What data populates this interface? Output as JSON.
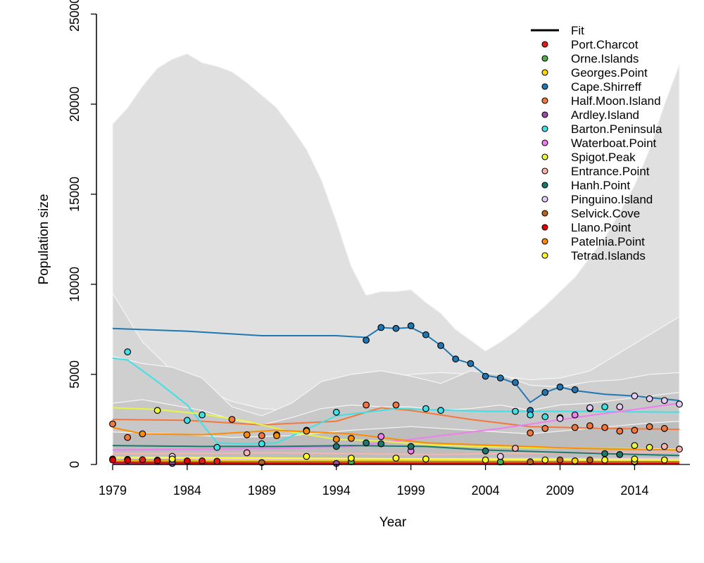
{
  "chart_data": {
    "type": "line",
    "xlabel": "Year",
    "ylabel": "Population size",
    "xlim": [
      1979,
      2017
    ],
    "ylim": [
      0,
      25000
    ],
    "x_ticks": [
      1979,
      1984,
      1989,
      1994,
      1999,
      2004,
      2009,
      2014
    ],
    "y_ticks": [
      0,
      5000,
      10000,
      15000,
      20000,
      25000
    ],
    "y_tick_labels": [
      "0",
      "5000",
      "10000",
      "15000",
      "20000",
      "25000"
    ],
    "grid": false,
    "legend_position": "top-right",
    "legend_fit_label": "Fit",
    "confidence_bands": [
      {
        "color": "#e0e0e0",
        "x": [
          1979,
          1980,
          1981,
          1982,
          1983,
          1984,
          1985,
          1986,
          1987,
          1988,
          1989,
          1990,
          1991,
          1992,
          1993,
          1994,
          1995,
          1996,
          1997,
          1998,
          1999,
          2000,
          2001,
          2002,
          2003,
          2004,
          2005,
          2006,
          2007,
          2008,
          2009,
          2010,
          2011,
          2012,
          2013,
          2014,
          2015,
          2016,
          2017
        ],
        "lower": [
          0,
          0,
          0,
          0,
          0,
          0,
          0,
          0,
          0,
          0,
          0,
          0,
          0,
          0,
          0,
          0,
          0,
          0,
          0,
          0,
          0,
          0,
          0,
          0,
          0,
          0,
          0,
          0,
          0,
          0,
          0,
          0,
          0,
          0,
          0,
          0,
          0,
          0,
          0
        ],
        "upper": [
          18900,
          19800,
          21000,
          22000,
          22500,
          22800,
          22300,
          22100,
          21800,
          21200,
          20500,
          19800,
          18700,
          17500,
          15800,
          13500,
          11000,
          9400,
          9600,
          9600,
          9700,
          9000,
          8400,
          7500,
          6900,
          6300,
          6800,
          7400,
          8100,
          8800,
          9600,
          10400,
          11500,
          12600,
          14000,
          15500,
          17500,
          20000,
          22200
        ]
      },
      {
        "color": "#d6d6d6",
        "x": [
          1979,
          1981,
          1983,
          1985,
          1987,
          1989,
          1991,
          1993,
          1995,
          1997,
          1999,
          2001,
          2003,
          2005,
          2007,
          2009,
          2011,
          2013,
          2015,
          2017
        ],
        "lower": [
          0,
          0,
          0,
          0,
          0,
          0,
          0,
          0,
          0,
          0,
          0,
          0,
          0,
          0,
          0,
          0,
          0,
          0,
          0,
          0
        ],
        "upper": [
          9500,
          6800,
          5200,
          4200,
          3500,
          3100,
          3000,
          3300,
          3800,
          4700,
          5000,
          5100,
          5000,
          4900,
          4700,
          4800,
          5200,
          6200,
          7200,
          8200
        ]
      },
      {
        "color": "#cfcfcf",
        "x": [
          1979,
          1981,
          1983,
          1985,
          1987,
          1989,
          1991,
          1993,
          1995,
          1997,
          1999,
          2001,
          2003,
          2005,
          2007,
          2009,
          2011,
          2013,
          2015,
          2017
        ],
        "lower": [
          0,
          0,
          0,
          0,
          0,
          0,
          0,
          0,
          0,
          0,
          0,
          0,
          0,
          0,
          0,
          0,
          0,
          0,
          0,
          0
        ],
        "upper": [
          6000,
          5600,
          5400,
          4800,
          3200,
          2700,
          3400,
          4600,
          5000,
          5200,
          4900,
          4500,
          5200,
          5000,
          4400,
          4300,
          4600,
          4700,
          5000,
          5100
        ]
      },
      {
        "color": "#c8c8c8",
        "x": [
          1979,
          1981,
          1983,
          1985,
          1987,
          1989,
          1991,
          1993,
          1995,
          1997,
          1999,
          2001,
          2003,
          2005,
          2007,
          2009,
          2011,
          2013,
          2015,
          2017
        ],
        "lower": [
          0,
          0,
          0,
          0,
          0,
          0,
          0,
          0,
          0,
          0,
          0,
          0,
          0,
          0,
          0,
          0,
          0,
          0,
          0,
          0
        ],
        "upper": [
          3400,
          3600,
          3300,
          3000,
          2500,
          2200,
          2600,
          3100,
          3300,
          3200,
          3200,
          3000,
          3100,
          3300,
          3000,
          3300,
          3400,
          3600,
          3800,
          4000
        ]
      },
      {
        "color": "#bdbdbd",
        "x": [
          1979,
          1983,
          1987,
          1991,
          1995,
          1999,
          2003,
          2007,
          2011,
          2015,
          2017
        ],
        "lower": [
          0,
          0,
          0,
          0,
          0,
          0,
          0,
          0,
          0,
          0,
          0
        ],
        "upper": [
          1800,
          1700,
          1500,
          1600,
          1900,
          2100,
          1900,
          1700,
          2000,
          2300,
          2400
        ]
      }
    ],
    "band_outline_color": "#f5f5f5",
    "series": [
      {
        "name": "Port.Charcot",
        "color": "#e41a1c",
        "fit_x": [
          1979,
          1985,
          1990,
          1995,
          2000,
          2005,
          2010,
          2017
        ],
        "fit_y": [
          280,
          200,
          140,
          110,
          100,
          95,
          90,
          90
        ],
        "points": [
          [
            1979,
            300
          ],
          [
            1980,
            280
          ],
          [
            1981,
            260
          ],
          [
            1982,
            240
          ],
          [
            1983,
            230
          ],
          [
            1985,
            200
          ],
          [
            1986,
            180
          ]
        ]
      },
      {
        "name": "Orne.Islands",
        "color": "#4daf4a",
        "fit_x": [
          1979,
          1990,
          2000,
          2010,
          2017
        ],
        "fit_y": [
          150,
          140,
          135,
          130,
          130
        ],
        "points": [
          [
            1995,
            150
          ],
          [
            2005,
            140
          ],
          [
            2014,
            130
          ]
        ]
      },
      {
        "name": "Georges.Point",
        "color": "#ffd700",
        "fit_x": [
          1979,
          1990,
          2000,
          2010,
          2017
        ],
        "fit_y": [
          200,
          190,
          180,
          170,
          165
        ],
        "points": [
          [
            2010,
            200
          ],
          [
            2014,
            180
          ]
        ]
      },
      {
        "name": "Cape.Shirreff",
        "color": "#1f78b4",
        "fit_x": [
          1979,
          1984,
          1989,
          1994,
          1996,
          1997,
          1998,
          1999,
          2000,
          2001,
          2002,
          2003,
          2004,
          2005,
          2006,
          2007,
          2008,
          2009,
          2010,
          2012,
          2014,
          2017
        ],
        "fit_y": [
          7550,
          7400,
          7150,
          7150,
          7050,
          7600,
          7550,
          7600,
          7200,
          6600,
          5850,
          5600,
          4950,
          4800,
          4500,
          3450,
          4000,
          4300,
          4100,
          3900,
          3800,
          3550
        ],
        "points": [
          [
            1996,
            6900
          ],
          [
            1997,
            7600
          ],
          [
            1998,
            7550
          ],
          [
            1999,
            7700
          ],
          [
            2000,
            7200
          ],
          [
            2001,
            6600
          ],
          [
            2002,
            5850
          ],
          [
            2003,
            5600
          ],
          [
            2004,
            4900
          ],
          [
            2005,
            4800
          ],
          [
            2006,
            4550
          ],
          [
            2007,
            3000
          ],
          [
            2008,
            4000
          ],
          [
            2009,
            4300
          ],
          [
            2010,
            4150
          ]
        ]
      },
      {
        "name": "Half.Moon.Island",
        "color": "#f4783c",
        "fit_x": [
          1979,
          1984,
          1989,
          1994,
          1997,
          1999,
          2003,
          2007,
          2012,
          2017
        ],
        "fit_y": [
          2500,
          2450,
          2200,
          2400,
          3150,
          3000,
          2500,
          2100,
          2000,
          1950
        ],
        "points": [
          [
            1979,
            2250
          ],
          [
            1980,
            1500
          ],
          [
            1987,
            2500
          ],
          [
            1989,
            1600
          ],
          [
            1990,
            1650
          ],
          [
            1992,
            1900
          ],
          [
            1994,
            1400
          ],
          [
            1996,
            3300
          ],
          [
            1998,
            3300
          ],
          [
            2007,
            1750
          ],
          [
            2008,
            2000
          ],
          [
            2010,
            2050
          ],
          [
            2011,
            2150
          ],
          [
            2012,
            2050
          ],
          [
            2013,
            1850
          ],
          [
            2014,
            1900
          ],
          [
            2015,
            2100
          ],
          [
            2016,
            2000
          ]
        ]
      },
      {
        "name": "Ardley.Island",
        "color": "#984ea3",
        "fit_x": [
          1979,
          1990,
          2000,
          2010,
          2017
        ],
        "fit_y": [
          60,
          55,
          50,
          50,
          50
        ],
        "points": [
          [
            1983,
            60
          ],
          [
            1994,
            55
          ]
        ]
      },
      {
        "name": "Barton.Peninsula",
        "color": "#3fe0e6",
        "fit_x": [
          1979,
          1980,
          1982,
          1984,
          1986,
          1988,
          1990,
          1994,
          1998,
          2004,
          2010,
          2017
        ],
        "fit_y": [
          5900,
          5800,
          4600,
          3300,
          1200,
          1150,
          1200,
          2700,
          3100,
          2950,
          2950,
          2900
        ],
        "points": [
          [
            1980,
            6250
          ],
          [
            1984,
            2450
          ],
          [
            1985,
            2750
          ],
          [
            1986,
            950
          ],
          [
            1989,
            1150
          ],
          [
            1994,
            2900
          ],
          [
            2000,
            3100
          ],
          [
            2001,
            3000
          ],
          [
            2006,
            2950
          ],
          [
            2007,
            2750
          ],
          [
            2008,
            2650
          ],
          [
            2011,
            3100
          ],
          [
            2012,
            3200
          ]
        ]
      },
      {
        "name": "Waterboat.Point",
        "color": "#f07ef0",
        "fit_x": [
          1979,
          1985,
          1990,
          1995,
          2000,
          2005,
          2010,
          2017
        ],
        "fit_y": [
          800,
          850,
          900,
          1000,
          1500,
          2000,
          2600,
          3400
        ],
        "points": [
          [
            1997,
            1550
          ],
          [
            1999,
            750
          ],
          [
            2009,
            2600
          ],
          [
            2010,
            2750
          ]
        ]
      },
      {
        "name": "Spigot.Peak",
        "color": "#e8f542",
        "fit_x": [
          1979,
          1982,
          1985,
          1988,
          1991,
          1994,
          1997,
          2000,
          2003,
          2006,
          2010,
          2017
        ],
        "fit_y": [
          3150,
          3050,
          2800,
          2400,
          1800,
          1400,
          1300,
          1100,
          1000,
          950,
          900,
          850
        ],
        "points": [
          [
            1982,
            3000
          ],
          [
            2014,
            1050
          ],
          [
            2015,
            950
          ]
        ]
      },
      {
        "name": "Entrance.Point",
        "color": "#fbb4ae",
        "fit_x": [
          1979,
          1985,
          1990,
          1995,
          2000,
          2005,
          2010,
          2017
        ],
        "fit_y": [
          600,
          620,
          650,
          600,
          550,
          600,
          650,
          700
        ],
        "points": [
          [
            1988,
            650
          ],
          [
            2006,
            900
          ],
          [
            2016,
            1000
          ],
          [
            2017,
            850
          ]
        ]
      },
      {
        "name": "Hanh.Point",
        "color": "#1b7a6e",
        "fit_x": [
          1979,
          1985,
          1990,
          1995,
          2000,
          2004,
          2008,
          2012,
          2017
        ],
        "fit_y": [
          1050,
          1000,
          1000,
          1050,
          1000,
          800,
          700,
          600,
          500
        ],
        "points": [
          [
            1994,
            1000
          ],
          [
            1996,
            1200
          ],
          [
            1997,
            1150
          ],
          [
            1999,
            1000
          ],
          [
            2004,
            750
          ],
          [
            2012,
            600
          ],
          [
            2013,
            550
          ]
        ]
      },
      {
        "name": "Pinguino.Island",
        "color": "#e5cdf7",
        "fit_x": [
          1979,
          1990,
          2000,
          2010,
          2017
        ],
        "fit_y": [
          300,
          300,
          320,
          330,
          340
        ],
        "points": [
          [
            1983,
            450
          ],
          [
            2005,
            450
          ],
          [
            2009,
            2550
          ],
          [
            2011,
            3150
          ],
          [
            2013,
            3200
          ],
          [
            2014,
            3800
          ],
          [
            2015,
            3650
          ],
          [
            2016,
            3550
          ],
          [
            2017,
            3350
          ]
        ]
      },
      {
        "name": "Selvick.Cove",
        "color": "#b5651d",
        "fit_x": [
          1979,
          1990,
          2000,
          2010,
          2017
        ],
        "fit_y": [
          150,
          150,
          140,
          140,
          140
        ],
        "points": [
          [
            1989,
            100
          ],
          [
            2007,
            150
          ],
          [
            2009,
            250
          ],
          [
            2011,
            250
          ]
        ]
      },
      {
        "name": "Llano.Point",
        "color": "#e00000",
        "fit_x": [
          1979,
          1985,
          1990,
          1995,
          2000,
          2005,
          2010,
          2017
        ],
        "fit_y": [
          100,
          80,
          60,
          50,
          40,
          40,
          40,
          40
        ],
        "points": [
          [
            1979,
            250
          ],
          [
            1980,
            230
          ],
          [
            1982,
            210
          ],
          [
            1984,
            200
          ]
        ]
      },
      {
        "name": "Patelnia.Point",
        "color": "#ff8c00",
        "fit_x": [
          1979,
          1981,
          1985,
          1990,
          1995,
          2000,
          2005,
          2010,
          2017
        ],
        "fit_y": [
          2050,
          1700,
          1650,
          1900,
          1700,
          1200,
          1050,
          900,
          800
        ],
        "points": [
          [
            1981,
            1700
          ],
          [
            1988,
            1650
          ],
          [
            1990,
            1600
          ],
          [
            1992,
            1850
          ],
          [
            1994,
            1400
          ],
          [
            1995,
            1450
          ]
        ]
      },
      {
        "name": "Tetrad.Islands",
        "color": "#ffff2a",
        "fit_x": [
          1979,
          1985,
          1990,
          1995,
          2000,
          2005,
          2010,
          2017
        ],
        "fit_y": [
          400,
          380,
          350,
          330,
          300,
          280,
          260,
          250
        ],
        "points": [
          [
            1983,
            300
          ],
          [
            1992,
            450
          ],
          [
            1995,
            350
          ],
          [
            1998,
            350
          ],
          [
            2000,
            300
          ],
          [
            2004,
            250
          ],
          [
            2008,
            250
          ],
          [
            2012,
            250
          ],
          [
            2014,
            300
          ],
          [
            2016,
            250
          ]
        ]
      }
    ]
  }
}
